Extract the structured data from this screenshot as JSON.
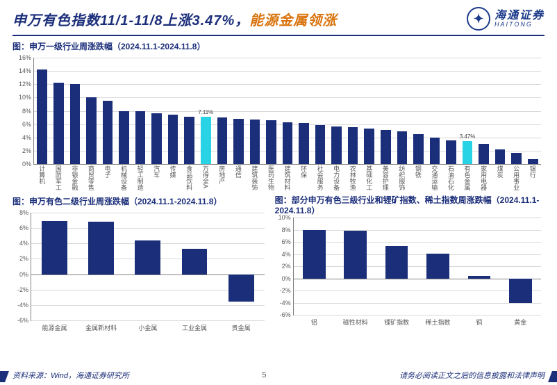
{
  "title_part1": "申万有色指数11/1-11/8上涨3.47%，",
  "title_part2": "能源金属领涨",
  "logo_cn": "海通证券",
  "logo_en": "HAITONG",
  "source_text": "资料来源：Wind，海通证券研究所",
  "page_number": "5",
  "disclaimer": "请务必阅读正文之后的信息披露和法律声明",
  "chart1": {
    "title": "图：申万一级行业周涨跌幅（2024.11.1-2024.11.8）",
    "type": "bar",
    "ylim": [
      0,
      16
    ],
    "ytick_step": 2,
    "bar_color": "#1b2e7a",
    "highlight_color": "#29d3e6",
    "grid_color": "#d9d9d9",
    "categories": [
      "计算机",
      "国防军工",
      "非银金融",
      "商贸零售",
      "电子",
      "机械设备",
      "轻工制造",
      "汽车",
      "传媒",
      "食品饮料",
      "万得全A",
      "房地产",
      "通信",
      "建筑装饰",
      "医药生物",
      "建筑材料",
      "环保",
      "社会服务",
      "电力设备",
      "农林牧渔",
      "基础化工",
      "美容护理",
      "纺织服饰",
      "钢铁",
      "交通运输",
      "石油石化",
      "有色金属",
      "家用电器",
      "煤炭",
      "公用事业",
      "银行"
    ],
    "values": [
      14.2,
      12.2,
      12.0,
      10.0,
      9.5,
      8.0,
      7.9,
      7.6,
      7.4,
      7.15,
      7.11,
      7.0,
      6.8,
      6.7,
      6.6,
      6.3,
      6.2,
      5.9,
      5.7,
      5.5,
      5.3,
      5.1,
      4.9,
      4.5,
      4.0,
      3.6,
      3.47,
      3.0,
      2.2,
      1.7,
      0.7
    ],
    "highlight_indices": [
      10,
      26
    ],
    "value_labels": {
      "10": "7.11%",
      "26": "3.47%"
    }
  },
  "chart2": {
    "title": "图：申万有色二级行业周涨跌幅（2024.11.1-2024.11.8）",
    "type": "bar",
    "ylim": [
      -6,
      8
    ],
    "ytick_step": 2,
    "bar_color": "#1b2e7a",
    "grid_color": "#d9d9d9",
    "categories": [
      "能源金属",
      "金属新材料",
      "小金属",
      "工业金属",
      "贵金属"
    ],
    "values": [
      6.9,
      6.8,
      4.4,
      3.3,
      -3.6
    ]
  },
  "chart3": {
    "title": "图：部分申万有色三级行业和锂矿指数、稀土指数周涨跌幅（2024.11.1-2024.11.8）",
    "type": "bar",
    "ylim": [
      -6,
      10
    ],
    "ytick_step": 2,
    "bar_color": "#1b2e7a",
    "grid_color": "#d9d9d9",
    "categories": [
      "铝",
      "磁性材料",
      "锂矿指数",
      "稀土指数",
      "铜",
      "黄金"
    ],
    "values": [
      8.0,
      7.8,
      5.3,
      4.1,
      0.4,
      -4.1
    ]
  }
}
